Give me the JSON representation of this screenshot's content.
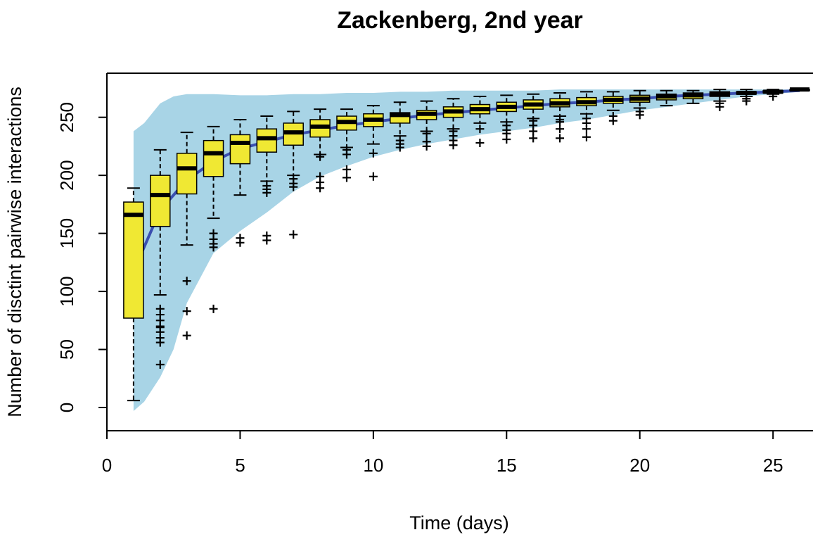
{
  "chart_data": {
    "type": "box",
    "title": "Zackenberg, 2nd year",
    "xlabel": "Time (days)",
    "ylabel": "Number of disctint pairwise interactions",
    "xlim": [
      0,
      26.5
    ],
    "ylim": [
      -20,
      288
    ],
    "x_ticks": [
      0,
      5,
      10,
      15,
      20,
      25
    ],
    "y_ticks": [
      0,
      50,
      100,
      150,
      200,
      250
    ],
    "colors": {
      "box_fill": "#f0e833",
      "envelope": "#a8d4e6",
      "mean_line": "#3a4fb0",
      "ink": "#000000"
    },
    "envelope": {
      "x": [
        1,
        1.4,
        2,
        2.5,
        3,
        4,
        5,
        6,
        7,
        8,
        9,
        10,
        11,
        12,
        13,
        14,
        15,
        16,
        17,
        18,
        19,
        20,
        21,
        22,
        23,
        24,
        25,
        26
      ],
      "upper": [
        238,
        245,
        262,
        268,
        270,
        270,
        269,
        269,
        270,
        270,
        271,
        271,
        272,
        272,
        273,
        273,
        273,
        273,
        274,
        274,
        274,
        274,
        274,
        274,
        274,
        274,
        274,
        274
      ],
      "lower": [
        -3,
        5,
        26,
        50,
        90,
        133,
        152,
        168,
        186,
        199,
        208,
        216,
        222,
        227,
        231,
        235,
        238,
        241,
        245,
        248,
        252,
        256,
        259,
        262,
        265,
        268,
        270,
        272
      ]
    },
    "mean_line": {
      "x": [
        1.3,
        2,
        3,
        4,
        5,
        6,
        7,
        8,
        9,
        10,
        11,
        12,
        13,
        14,
        15,
        16,
        17,
        18,
        19,
        20,
        21,
        22,
        23,
        24,
        25,
        26
      ],
      "y": [
        133,
        170,
        196,
        212,
        223,
        229,
        235,
        239,
        243,
        246,
        249,
        252,
        254,
        256,
        258,
        260,
        262,
        263,
        265,
        266,
        268,
        269,
        270,
        271,
        272,
        273
      ]
    },
    "boxes": [
      {
        "x": 1,
        "q1": 77,
        "median": 166,
        "q3": 177,
        "lo": 6,
        "hi": 189,
        "outliers": []
      },
      {
        "x": 2,
        "q1": 156,
        "median": 183,
        "q3": 200,
        "lo": 97,
        "hi": 222,
        "outliers": [
          85,
          80,
          75,
          70,
          69,
          65,
          60,
          56,
          37
        ]
      },
      {
        "x": 3,
        "q1": 184,
        "median": 206,
        "q3": 219,
        "lo": 140,
        "hi": 237,
        "outliers": [
          109,
          83,
          62
        ]
      },
      {
        "x": 4,
        "q1": 199,
        "median": 219,
        "q3": 230,
        "lo": 163,
        "hi": 242,
        "outliers": [
          150,
          145,
          141,
          138,
          85
        ]
      },
      {
        "x": 5,
        "q1": 210,
        "median": 228,
        "q3": 235,
        "lo": 183,
        "hi": 248,
        "outliers": [
          146,
          142
        ]
      },
      {
        "x": 6,
        "q1": 220,
        "median": 232,
        "q3": 240,
        "lo": 195,
        "hi": 251,
        "outliers": [
          191,
          188,
          185,
          148,
          144
        ]
      },
      {
        "x": 7,
        "q1": 226,
        "median": 237,
        "q3": 245,
        "lo": 200,
        "hi": 255,
        "outliers": [
          197,
          193,
          190,
          149
        ]
      },
      {
        "x": 8,
        "q1": 233,
        "median": 242,
        "q3": 248,
        "lo": 218,
        "hi": 257,
        "outliers": [
          216,
          199,
          194,
          189
        ]
      },
      {
        "x": 9,
        "q1": 239,
        "median": 246,
        "q3": 251,
        "lo": 224,
        "hi": 257,
        "outliers": [
          222,
          218,
          205,
          198
        ]
      },
      {
        "x": 10,
        "q1": 242,
        "median": 248,
        "q3": 253,
        "lo": 227,
        "hi": 260,
        "outliers": [
          219,
          199
        ]
      },
      {
        "x": 11,
        "q1": 245,
        "median": 252,
        "q3": 254,
        "lo": 234,
        "hi": 263,
        "outliers": [
          230,
          227,
          224
        ]
      },
      {
        "x": 12,
        "q1": 248,
        "median": 253,
        "q3": 256,
        "lo": 238,
        "hi": 264,
        "outliers": [
          236,
          229,
          225
        ]
      },
      {
        "x": 13,
        "q1": 250,
        "median": 255,
        "q3": 259,
        "lo": 240,
        "hi": 266,
        "outliers": [
          238,
          234,
          230,
          226
        ]
      },
      {
        "x": 14,
        "q1": 253,
        "median": 257,
        "q3": 261,
        "lo": 245,
        "hi": 268,
        "outliers": [
          240,
          228
        ]
      },
      {
        "x": 15,
        "q1": 255,
        "median": 259,
        "q3": 263,
        "lo": 246,
        "hi": 269,
        "outliers": [
          243,
          239,
          236,
          231
        ]
      },
      {
        "x": 16,
        "q1": 257,
        "median": 261,
        "q3": 265,
        "lo": 249,
        "hi": 270,
        "outliers": [
          247,
          243,
          238,
          232
        ]
      },
      {
        "x": 17,
        "q1": 259,
        "median": 262,
        "q3": 266,
        "lo": 251,
        "hi": 271,
        "outliers": [
          248,
          246,
          240,
          232
        ]
      },
      {
        "x": 18,
        "q1": 260,
        "median": 263,
        "q3": 267,
        "lo": 253,
        "hi": 272,
        "outliers": [
          249,
          245,
          240,
          233
        ]
      },
      {
        "x": 19,
        "q1": 262,
        "median": 265,
        "q3": 268,
        "lo": 256,
        "hi": 272,
        "outliers": [
          251,
          247
        ]
      },
      {
        "x": 20,
        "q1": 263,
        "median": 266,
        "q3": 269,
        "lo": 258,
        "hi": 273,
        "outliers": [
          255,
          252
        ]
      },
      {
        "x": 21,
        "q1": 265,
        "median": 268,
        "q3": 270,
        "lo": 260,
        "hi": 273,
        "outliers": []
      },
      {
        "x": 22,
        "q1": 266,
        "median": 269,
        "q3": 271,
        "lo": 262,
        "hi": 273,
        "outliers": []
      },
      {
        "x": 23,
        "q1": 268,
        "median": 270,
        "q3": 272,
        "lo": 264,
        "hi": 274,
        "outliers": [
          262,
          259
        ]
      },
      {
        "x": 24,
        "q1": 270,
        "median": 271,
        "q3": 272,
        "lo": 268,
        "hi": 274,
        "outliers": [
          266,
          264
        ]
      },
      {
        "x": 25,
        "q1": 271,
        "median": 272,
        "q3": 273,
        "lo": 270,
        "hi": 274,
        "outliers": [
          268
        ]
      },
      {
        "x": 26,
        "q1": 273,
        "median": 274,
        "q3": 274,
        "lo": 273,
        "hi": 274,
        "outliers": []
      }
    ]
  }
}
